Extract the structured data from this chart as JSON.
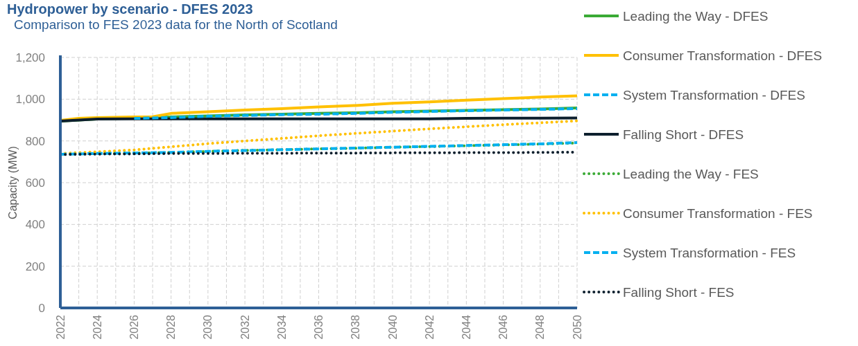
{
  "chart_data": {
    "type": "line",
    "title": "Hydropower by scenario - DFES 2023",
    "subtitle": "Comparison to FES 2023 data for the North of Scotland",
    "ylabel": "Capacity (MW)",
    "xlim": [
      2022,
      2050
    ],
    "ylim": [
      0,
      1200
    ],
    "xticks": [
      2022,
      {
        "value": 2023,
        "label": null
      },
      2024,
      {
        "value": 2025,
        "label": null
      },
      2026,
      {
        "value": 2027,
        "label": null
      },
      2028,
      {
        "value": 2029,
        "label": null
      },
      2030,
      {
        "value": 2031,
        "label": null
      },
      2032,
      {
        "value": 2033,
        "label": null
      },
      2034,
      {
        "value": 2035,
        "label": null
      },
      2036,
      {
        "value": 2037,
        "label": null
      },
      2038,
      {
        "value": 2039,
        "label": null
      },
      2040,
      {
        "value": 2041,
        "label": null
      },
      2042,
      {
        "value": 2043,
        "label": null
      },
      2044,
      {
        "value": 2045,
        "label": null
      },
      2046,
      {
        "value": 2047,
        "label": null
      },
      2048,
      {
        "value": 2049,
        "label": null
      },
      2050
    ],
    "yticks": [
      {
        "value": 0,
        "label": "0"
      },
      {
        "value": 200,
        "label": "200"
      },
      {
        "value": 400,
        "label": "400"
      },
      {
        "value": 600,
        "label": "600"
      },
      {
        "value": 800,
        "label": "800"
      },
      {
        "value": 1000,
        "label": "1,000"
      },
      {
        "value": 1200,
        "label": "1,200"
      }
    ],
    "grid": true,
    "legend": "right",
    "marker": "none",
    "x": [
      2022,
      2024,
      2026,
      2028,
      2030,
      2032,
      2034,
      2036,
      2038,
      2040,
      2042,
      2044,
      2046,
      2048,
      2050
    ],
    "series": [
      {
        "name": "Leading the Way - DFES",
        "color": "#3aaa35",
        "line_style": "solid",
        "values": [
          895,
          905,
          910,
          915,
          920,
          925,
          928,
          932,
          935,
          940,
          943,
          946,
          950,
          953,
          958
        ]
      },
      {
        "name": "Consumer Transformation - DFES",
        "color": "#ffc000",
        "line_style": "solid",
        "x": [
          2022,
          2023,
          2024,
          2026,
          2027,
          2028,
          2030,
          2032,
          2034,
          2036,
          2038,
          2040,
          2042,
          2044,
          2046,
          2048,
          2050
        ],
        "values": [
          898,
          908,
          912,
          915,
          916,
          932,
          940,
          948,
          955,
          963,
          970,
          980,
          987,
          995,
          1003,
          1010,
          1016
        ]
      },
      {
        "name": "System Transformation - DFES",
        "color": "#00b0f0",
        "line_style": "dashed",
        "values": [
          null,
          null,
          908,
          912,
          918,
          922,
          926,
          928,
          932,
          937,
          941,
          945,
          948,
          951,
          955
        ]
      },
      {
        "name": "Falling Short - DFES",
        "color": "#0d1f2d",
        "line_style": "solid",
        "values": [
          895,
          905,
          906,
          906,
          906,
          906,
          906,
          906,
          906,
          906,
          906,
          908,
          909,
          909,
          910
        ]
      },
      {
        "name": "Leading the Way - FES",
        "color": "#3aaa35",
        "line_style": "dotted",
        "values": [
          738,
          740,
          742,
          745,
          750,
          755,
          758,
          762,
          765,
          770,
          773,
          777,
          781,
          785,
          790
        ]
      },
      {
        "name": "Consumer Transformation - FES",
        "color": "#ffc000",
        "line_style": "dotted",
        "values": [
          740,
          748,
          757,
          772,
          787,
          800,
          812,
          825,
          836,
          847,
          858,
          868,
          878,
          887,
          896
        ]
      },
      {
        "name": "System Transformation - FES",
        "color": "#00b0f0",
        "line_style": "dashed",
        "values": [
          736,
          740,
          742,
          745,
          750,
          754,
          758,
          762,
          766,
          770,
          774,
          778,
          782,
          786,
          792
        ]
      },
      {
        "name": "Falling Short - FES",
        "color": "#0d1f2d",
        "line_style": "dotted",
        "values": [
          735,
          737,
          738,
          740,
          740,
          741,
          741,
          742,
          742,
          743,
          743,
          744,
          744,
          745,
          746
        ]
      }
    ]
  }
}
